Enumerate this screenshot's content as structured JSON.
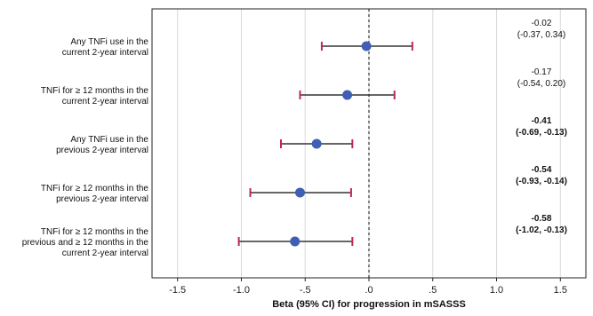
{
  "chart_data": {
    "type": "forest",
    "xlabel": "Beta (95% CI) for progression in mSASSS",
    "xlim": [
      -1.7,
      1.7
    ],
    "xticks": [
      {
        "value": -1.5,
        "label": "-1.5"
      },
      {
        "value": -1.0,
        "label": "-1.0"
      },
      {
        "value": -0.5,
        "label": "-.5"
      },
      {
        "value": 0.0,
        "label": ".0"
      },
      {
        "value": 0.5,
        "label": ".5"
      },
      {
        "value": 1.0,
        "label": "1.0"
      },
      {
        "value": 1.5,
        "label": "1.5"
      }
    ],
    "reference_line": 0.0,
    "grid": true,
    "point_color": "#3f5fb5",
    "ci_line_color": "#333333",
    "ci_cap_color": "#c0284a",
    "rows": [
      {
        "label_lines": [
          "Any TNFi use in the",
          "current 2-year interval"
        ],
        "beta": -0.02,
        "ci_low": -0.37,
        "ci_high": 0.34,
        "estimate_line1": "-0.02",
        "estimate_line2": "(-0.37, 0.34)",
        "bold": false
      },
      {
        "label_lines": [
          "TNFi for ≥ 12 months in the",
          "current 2-year interval"
        ],
        "beta": -0.17,
        "ci_low": -0.54,
        "ci_high": 0.2,
        "estimate_line1": "-0.17",
        "estimate_line2": "(-0.54, 0.20)",
        "bold": false
      },
      {
        "label_lines": [
          "Any TNFi use in the",
          "previous 2-year interval"
        ],
        "beta": -0.41,
        "ci_low": -0.69,
        "ci_high": -0.13,
        "estimate_line1": "-0.41",
        "estimate_line2": "(-0.69, -0.13)",
        "bold": true
      },
      {
        "label_lines": [
          "TNFi for ≥ 12 months in the",
          "previous 2-year interval"
        ],
        "beta": -0.54,
        "ci_low": -0.93,
        "ci_high": -0.14,
        "estimate_line1": "-0.54",
        "estimate_line2": "(-0.93, -0.14)",
        "bold": true
      },
      {
        "label_lines": [
          "TNFi for ≥ 12 months in the",
          "previous and ≥ 12 months in the",
          "current 2-year interval"
        ],
        "beta": -0.58,
        "ci_low": -1.02,
        "ci_high": -0.13,
        "estimate_line1": "-0.58",
        "estimate_line2": "(-1.02, -0.13)",
        "bold": true
      }
    ]
  }
}
